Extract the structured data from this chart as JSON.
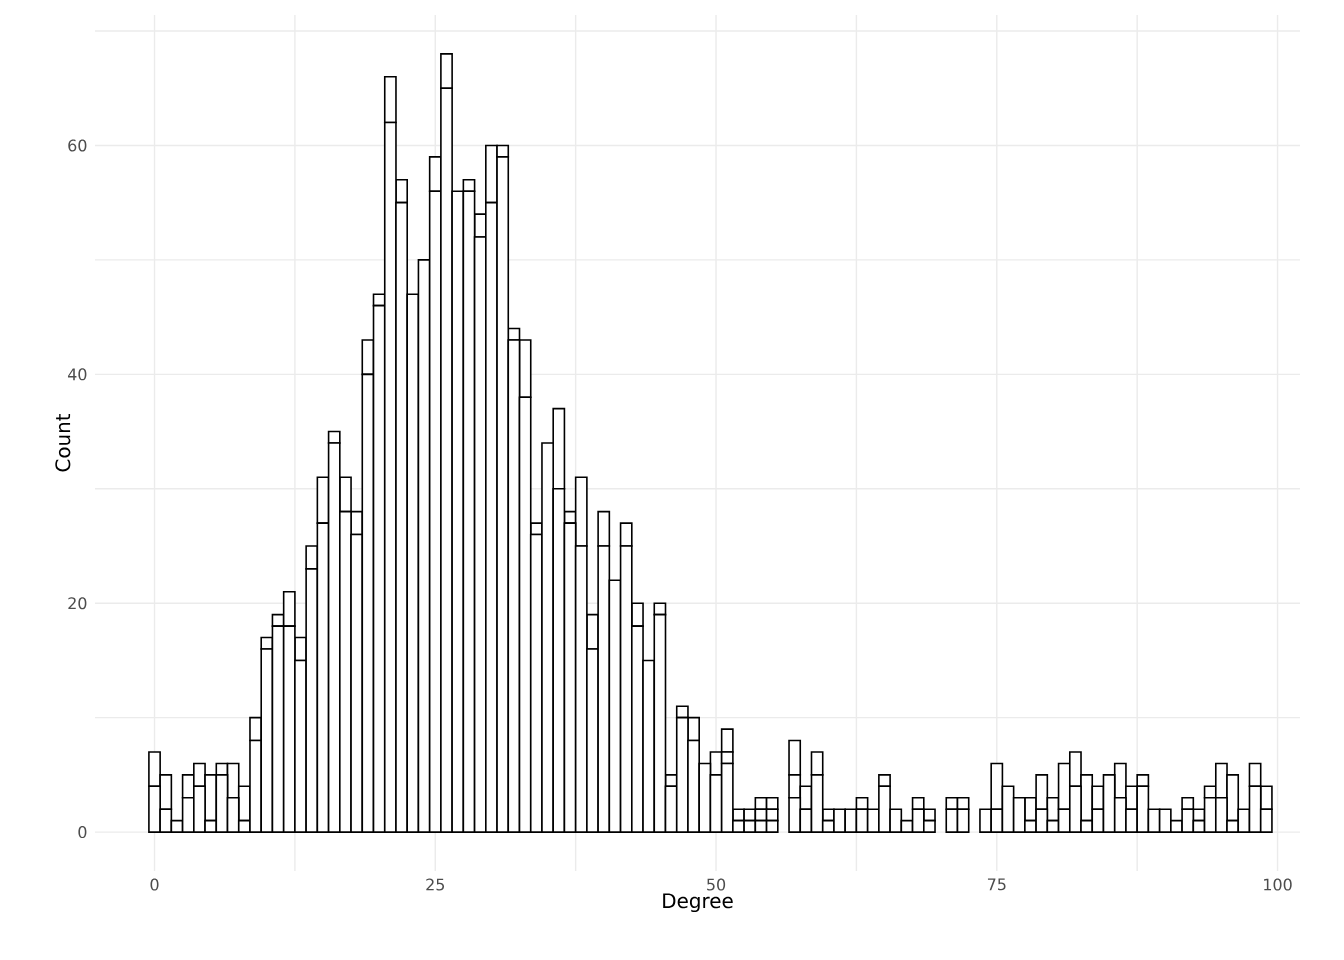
{
  "chart_data": {
    "type": "bar",
    "xlabel": "Degree",
    "ylabel": "Count",
    "stacked": true,
    "grid": true,
    "x": [
      0,
      1,
      2,
      3,
      4,
      5,
      6,
      7,
      8,
      9,
      10,
      11,
      12,
      13,
      14,
      15,
      16,
      17,
      18,
      19,
      20,
      21,
      22,
      23,
      24,
      25,
      26,
      27,
      28,
      29,
      30,
      31,
      32,
      33,
      34,
      35,
      36,
      37,
      38,
      39,
      40,
      41,
      42,
      43,
      44,
      45,
      46,
      47,
      48,
      49,
      50,
      51,
      52,
      53,
      54,
      55,
      56,
      57,
      58,
      59,
      60,
      61,
      62,
      63,
      64,
      65,
      66,
      67,
      68,
      69,
      70,
      71,
      72,
      73,
      74,
      75,
      76,
      77,
      78,
      79,
      80,
      81,
      82,
      83,
      84,
      85,
      86,
      87,
      88,
      89,
      90,
      91,
      92,
      93,
      94,
      95,
      96,
      97,
      98,
      99
    ],
    "series": [
      {
        "color": "#ffffff",
        "values": [
          4,
          2,
          1,
          3,
          4,
          1,
          5,
          3,
          1,
          8,
          16,
          18,
          18,
          15,
          23,
          27,
          34,
          28,
          26,
          40,
          46,
          62,
          55,
          47,
          50,
          56,
          65,
          56,
          56,
          52,
          55,
          59,
          43,
          38,
          26,
          34,
          30,
          27,
          25,
          16,
          25,
          22,
          25,
          18,
          15,
          19,
          4,
          10,
          8,
          6,
          5,
          6,
          1,
          1,
          1,
          1,
          0,
          3,
          2,
          5,
          1,
          2,
          2,
          2,
          2,
          4,
          2,
          1,
          2,
          1,
          0,
          2,
          2,
          0,
          2,
          2,
          4,
          3,
          1,
          2,
          1,
          2,
          4,
          1,
          2,
          5,
          3,
          2,
          4,
          2,
          2,
          1,
          2,
          1,
          3,
          3,
          1,
          2,
          4,
          2
        ]
      },
      {
        "color": "#ffffff",
        "values": [
          3,
          3,
          0,
          2,
          2,
          4,
          1,
          3,
          3,
          2,
          1,
          1,
          3,
          2,
          2,
          4,
          1,
          3,
          2,
          3,
          1,
          4,
          2,
          0,
          0,
          3,
          3,
          0,
          1,
          2,
          5,
          1,
          1,
          5,
          1,
          0,
          7,
          1,
          6,
          3,
          3,
          0,
          2,
          2,
          0,
          1,
          1,
          1,
          2,
          0,
          2,
          1,
          1,
          1,
          1,
          1,
          0,
          2,
          2,
          2,
          1,
          0,
          0,
          1,
          0,
          1,
          0,
          0,
          1,
          1,
          0,
          1,
          1,
          0,
          0,
          4,
          0,
          0,
          2,
          3,
          2,
          4,
          3,
          4,
          2,
          0,
          3,
          2,
          1,
          0,
          0,
          0,
          1,
          1,
          1,
          3,
          4,
          0,
          2,
          2
        ]
      },
      {
        "color": "#ffffff",
        "values": [
          0,
          0,
          0,
          0,
          0,
          0,
          0,
          0,
          0,
          0,
          0,
          0,
          0,
          0,
          0,
          0,
          0,
          0,
          0,
          0,
          0,
          0,
          0,
          0,
          0,
          0,
          0,
          0,
          0,
          0,
          0,
          0,
          0,
          0,
          0,
          0,
          0,
          0,
          0,
          0,
          0,
          0,
          0,
          0,
          0,
          0,
          0,
          0,
          0,
          0,
          0,
          2,
          0,
          0,
          1,
          1,
          0,
          3,
          0,
          0,
          0,
          0,
          0,
          0,
          0,
          0,
          0,
          0,
          0,
          0,
          0,
          0,
          0,
          0,
          0,
          0,
          0,
          0,
          0,
          0,
          0,
          0,
          0,
          0,
          0,
          0,
          0,
          0,
          0,
          0,
          0,
          0,
          0,
          0,
          0,
          0,
          0,
          0,
          0,
          0
        ]
      }
    ],
    "xlim": [
      -5.3,
      102
    ],
    "ylim": [
      -3.4,
      71.4
    ],
    "xticks": [
      0,
      {
        "value": 12.5,
        "label": null
      },
      25,
      {
        "value": 37.5,
        "label": null
      },
      50,
      {
        "value": 62.5,
        "label": null
      },
      75,
      {
        "value": 87.5,
        "label": null
      },
      100
    ],
    "yticks": [
      0,
      {
        "value": 10,
        "label": null
      },
      20,
      {
        "value": 30,
        "label": null
      },
      40,
      {
        "value": 50,
        "label": null
      },
      60,
      {
        "value": 70,
        "label": null
      }
    ]
  }
}
